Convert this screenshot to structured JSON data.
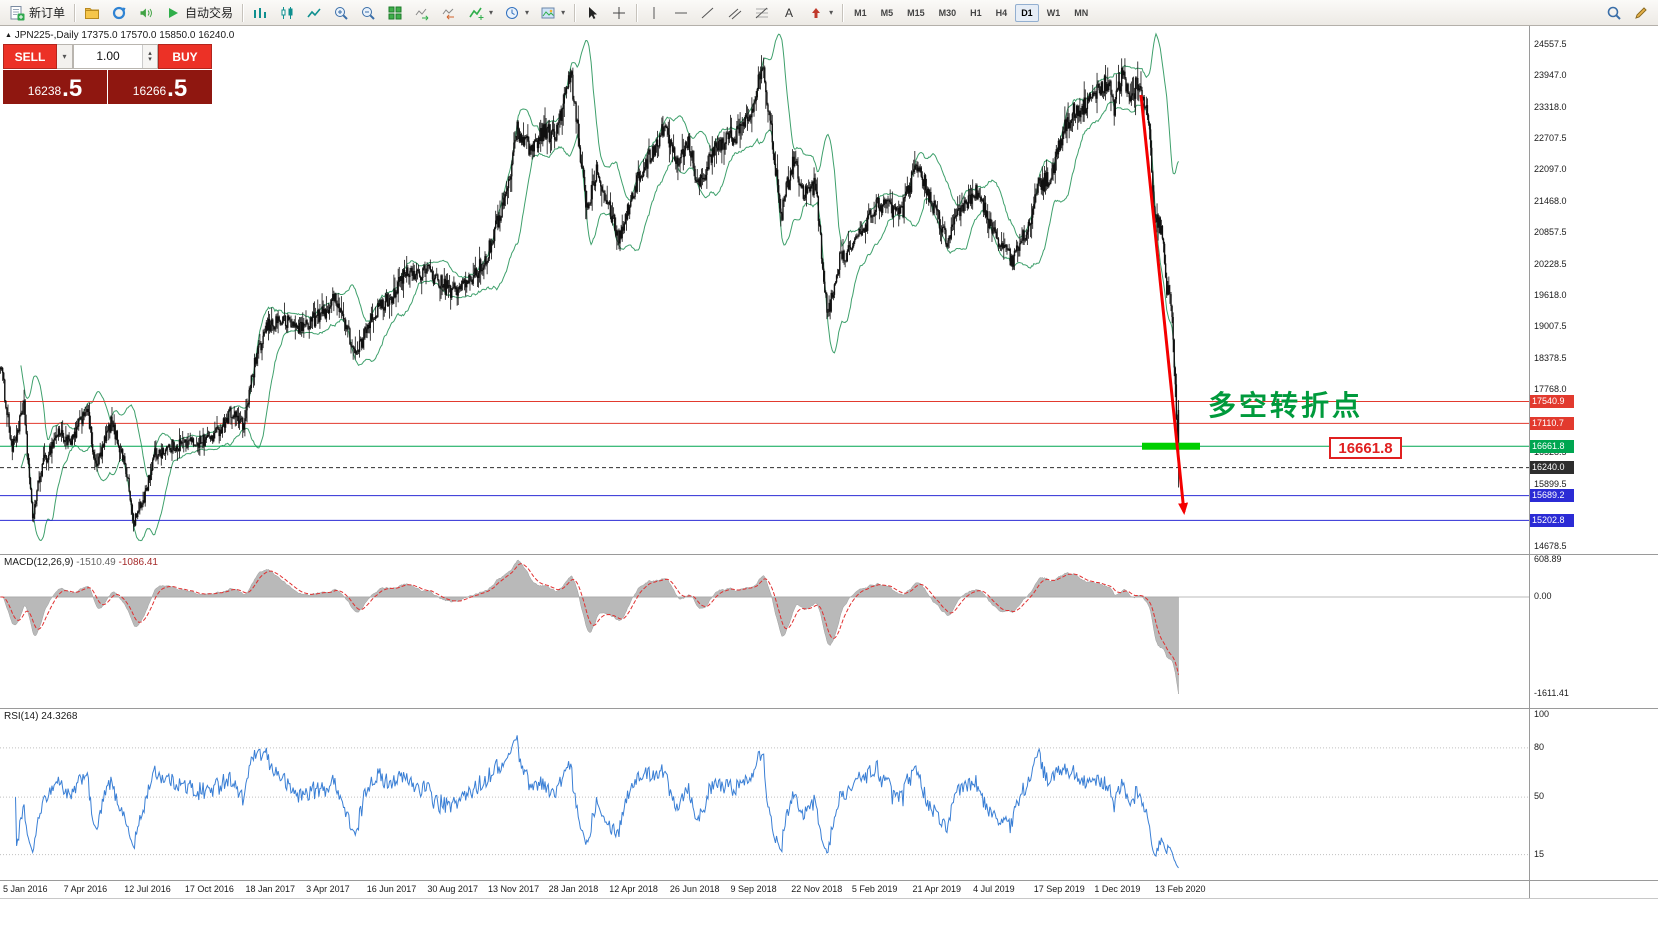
{
  "toolbar": {
    "new_order_label": "新订单",
    "auto_trading_label": "自动交易",
    "timeframes": [
      "M1",
      "M5",
      "M15",
      "M30",
      "H1",
      "H4",
      "D1",
      "W1",
      "MN"
    ],
    "active_timeframe": "D1"
  },
  "chart": {
    "marker": "▲",
    "symbol_period": "JPN225-,Daily",
    "ohlc": "17375.0 17570.0 15850.0 16240.0"
  },
  "trade_panel": {
    "sell_label": "SELL",
    "buy_label": "BUY",
    "volume": "1.00",
    "sell_price_main": "16238",
    "sell_price_big": ".5",
    "buy_price_main": "16266",
    "buy_price_big": ".5"
  },
  "annotations": {
    "turning_point_text": "多空转折点",
    "price_callout": "16661.8"
  },
  "macd": {
    "label": "MACD(12,26,9)",
    "value_main": "-1510.49",
    "value_signal": "-1086.41",
    "scale_labels": [
      "608.89",
      "0.00",
      "-1611.41"
    ],
    "scale_values": [
      608.89,
      0,
      -1611.41
    ]
  },
  "rsi": {
    "label": "RSI(14)",
    "value": "24.3268",
    "levels": [
      100,
      80,
      50,
      15
    ]
  },
  "chart_data": {
    "type": "candlestick",
    "symbol": "JPN225-",
    "period": "Daily",
    "last_ohlc": {
      "open": 17375.0,
      "high": 17570.0,
      "low": 15850.0,
      "close": 16240.0
    },
    "price_axis": {
      "max": 24557.5,
      "min": 14678.5,
      "ticks": [
        24557.5,
        23947.0,
        23318.0,
        22707.5,
        22097.0,
        21468.0,
        20857.5,
        20228.5,
        19618.0,
        19007.5,
        18378.5,
        17768.0,
        16528.5,
        15899.5,
        14678.5
      ]
    },
    "horizontal_lines": [
      {
        "price": 17540.9,
        "label": "17540.9",
        "color": "#e23a2e",
        "style": "solid"
      },
      {
        "price": 17110.7,
        "label": "17110.7",
        "color": "#e23a2e",
        "style": "solid"
      },
      {
        "price": 16661.8,
        "label": "16661.8",
        "color": "#00a651",
        "style": "solid"
      },
      {
        "price": 16240.0,
        "label": "16240.0",
        "color": "#2e2e2e",
        "style": "dash",
        "role": "current-price"
      },
      {
        "price": 15689.2,
        "label": "15689.2",
        "color": "#2b2bd5",
        "style": "solid"
      },
      {
        "price": 15202.8,
        "label": "15202.8",
        "color": "#2b2bd5",
        "style": "solid"
      }
    ],
    "highlight_segment": {
      "price": 16661.8,
      "color": "#00cf00"
    },
    "trend_arrow": {
      "color": "#f40000",
      "from_price": 23600,
      "to_price": 15300
    },
    "dates": [
      "5 Jan 2016",
      "7 Apr 2016",
      "12 Jul 2016",
      "17 Oct 2016",
      "18 Jan 2017",
      "3 Apr 2017",
      "16 Jun 2017",
      "30 Aug 2017",
      "13 Nov 2017",
      "28 Jan 2018",
      "12 Apr 2018",
      "26 Jun 2018",
      "9 Sep 2018",
      "22 Nov 2018",
      "5 Feb 2019",
      "21 Apr 2019",
      "4 Jul 2019",
      "17 Sep 2019",
      "1 Dec 2019",
      "13 Feb 2020"
    ],
    "num_candles": 1100,
    "candle_color": "#101010",
    "bands": {
      "period": 20,
      "deviation": 2,
      "color": "#3fa06c"
    },
    "macd_colors": {
      "histogram": "#b9b9b9",
      "signal": "#e03030"
    },
    "rsi_color": "#3a7fd5",
    "price_waypoints": [
      [
        0.0,
        18300
      ],
      [
        0.01,
        16600
      ],
      [
        0.02,
        17450
      ],
      [
        0.027,
        15250
      ],
      [
        0.035,
        16250
      ],
      [
        0.049,
        16950
      ],
      [
        0.06,
        16700
      ],
      [
        0.073,
        17450
      ],
      [
        0.081,
        16200
      ],
      [
        0.094,
        17150
      ],
      [
        0.106,
        16300
      ],
      [
        0.113,
        15150
      ],
      [
        0.122,
        15650
      ],
      [
        0.131,
        16500
      ],
      [
        0.15,
        16700
      ],
      [
        0.17,
        16750
      ],
      [
        0.183,
        16900
      ],
      [
        0.196,
        17350
      ],
      [
        0.206,
        17050
      ],
      [
        0.216,
        18300
      ],
      [
        0.226,
        19000
      ],
      [
        0.236,
        19150
      ],
      [
        0.255,
        19000
      ],
      [
        0.275,
        19300
      ],
      [
        0.285,
        19600
      ],
      [
        0.302,
        18420
      ],
      [
        0.314,
        19200
      ],
      [
        0.333,
        19650
      ],
      [
        0.344,
        20050
      ],
      [
        0.363,
        20100
      ],
      [
        0.382,
        19700
      ],
      [
        0.398,
        19900
      ],
      [
        0.412,
        20350
      ],
      [
        0.431,
        21750
      ],
      [
        0.438,
        22900
      ],
      [
        0.451,
        22500
      ],
      [
        0.461,
        22900
      ],
      [
        0.471,
        22750
      ],
      [
        0.484,
        23980
      ],
      [
        0.498,
        21300
      ],
      [
        0.506,
        22150
      ],
      [
        0.516,
        21450
      ],
      [
        0.525,
        20750
      ],
      [
        0.539,
        21800
      ],
      [
        0.553,
        22450
      ],
      [
        0.563,
        22950
      ],
      [
        0.575,
        22300
      ],
      [
        0.584,
        22700
      ],
      [
        0.592,
        21800
      ],
      [
        0.608,
        22550
      ],
      [
        0.627,
        22850
      ],
      [
        0.637,
        23250
      ],
      [
        0.647,
        24250
      ],
      [
        0.657,
        22300
      ],
      [
        0.663,
        21250
      ],
      [
        0.673,
        22350
      ],
      [
        0.682,
        21650
      ],
      [
        0.692,
        21800
      ],
      [
        0.702,
        19200
      ],
      [
        0.712,
        20300
      ],
      [
        0.725,
        20650
      ],
      [
        0.735,
        21050
      ],
      [
        0.745,
        21450
      ],
      [
        0.765,
        21250
      ],
      [
        0.778,
        22250
      ],
      [
        0.794,
        21250
      ],
      [
        0.804,
        20700
      ],
      [
        0.814,
        21250
      ],
      [
        0.829,
        21700
      ],
      [
        0.839,
        21050
      ],
      [
        0.859,
        20300
      ],
      [
        0.873,
        21050
      ],
      [
        0.882,
        21800
      ],
      [
        0.892,
        21950
      ],
      [
        0.902,
        22850
      ],
      [
        0.912,
        23300
      ],
      [
        0.922,
        23350
      ],
      [
        0.931,
        23650
      ],
      [
        0.941,
        23850
      ],
      [
        0.945,
        23300
      ],
      [
        0.953,
        24050
      ],
      [
        0.959,
        23350
      ],
      [
        0.965,
        23850
      ],
      [
        0.973,
        23390
      ],
      [
        0.976,
        22600
      ],
      [
        0.98,
        21140
      ],
      [
        0.984,
        21000
      ],
      [
        0.987,
        20750
      ],
      [
        0.99,
        19700
      ],
      [
        0.993,
        19800
      ],
      [
        0.996,
        18560
      ],
      [
        0.998,
        17430
      ],
      [
        1.0,
        16240
      ]
    ]
  }
}
